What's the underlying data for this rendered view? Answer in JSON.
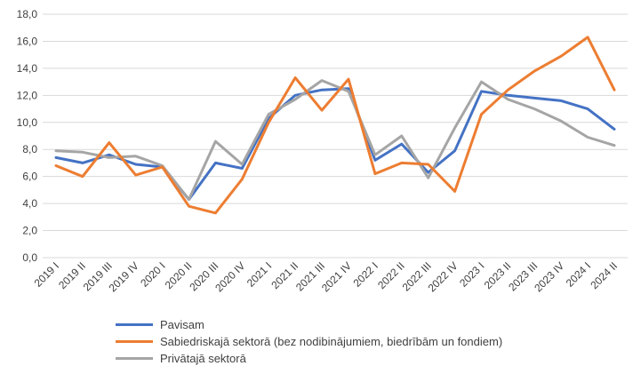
{
  "chart_data": {
    "type": "line",
    "title": "",
    "xlabel": "",
    "ylabel": "",
    "ylim": [
      0,
      18
    ],
    "y_ticks": [
      "0,0",
      "2,0",
      "4,0",
      "6,0",
      "8,0",
      "10,0",
      "12,0",
      "14,0",
      "16,0",
      "18,0"
    ],
    "grid": true,
    "legend_position": "bottom",
    "categories": [
      "2019 I",
      "2019 II",
      "2019 III",
      "2019 IV",
      "2020 I",
      "2020 II",
      "2020 III",
      "2020 IV",
      "2021 I",
      "2021 II",
      "2021 III",
      "2021 IV",
      "2022 I",
      "2022 II",
      "2022 III",
      "2022 IV",
      "2023 I",
      "2023 II",
      "2023 III",
      "2023 IV",
      "2024 I",
      "2024 II"
    ],
    "series": [
      {
        "name": "Pavisam",
        "color": "#4472C4",
        "values": [
          7.4,
          7.0,
          7.6,
          6.9,
          6.7,
          4.3,
          7.0,
          6.6,
          10.3,
          12.0,
          12.4,
          12.5,
          7.2,
          8.4,
          6.3,
          7.9,
          12.3,
          12.0,
          11.8,
          11.6,
          11.0,
          9.5
        ]
      },
      {
        "name": "Sabiedriskajā sektorā (bez nodibinājumiem, biedrībām un fondiem)",
        "color": "#ED7D31",
        "values": [
          6.8,
          6.0,
          8.5,
          6.1,
          6.7,
          3.8,
          3.3,
          5.8,
          10.0,
          13.3,
          10.9,
          13.2,
          6.2,
          7.0,
          6.9,
          4.9,
          10.6,
          12.4,
          13.8,
          14.9,
          16.3,
          12.4
        ]
      },
      {
        "name": "Privātajā sektorā",
        "color": "#A5A5A5",
        "values": [
          7.9,
          7.8,
          7.4,
          7.5,
          6.8,
          4.3,
          8.6,
          6.9,
          10.6,
          11.7,
          13.1,
          12.3,
          7.6,
          9.0,
          5.9,
          9.6,
          13.0,
          11.7,
          11.0,
          10.1,
          8.9,
          8.3
        ]
      }
    ]
  }
}
